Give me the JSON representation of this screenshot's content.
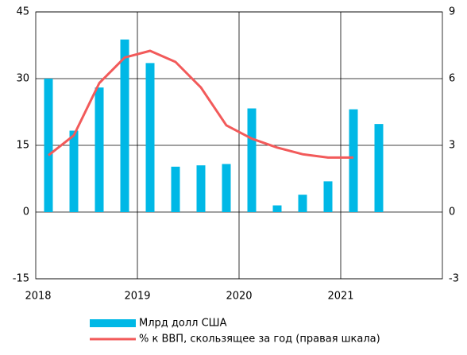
{
  "chart_data": {
    "type": "bar_line",
    "categories": [
      null,
      null,
      null,
      null,
      null,
      null,
      null,
      null,
      null,
      null,
      null,
      null,
      null,
      null,
      null,
      null
    ],
    "year_labels": [
      "2018",
      "2019",
      "2020",
      "2021"
    ],
    "series": [
      {
        "name": "Млрд долл США",
        "color": "#00b8e6",
        "type": "bar",
        "values": [
          30,
          18.3,
          28,
          38.8,
          33.5,
          10.2,
          10.5,
          10.8,
          23.3,
          1.5,
          3.9,
          6.9,
          23.1,
          19.8,
          null,
          null
        ]
      },
      {
        "name": "% к ВВП, скользящее за год (правая шкала)",
        "color": "#f25a5a",
        "type": "line",
        "axis": "y2",
        "values": [
          2.55,
          3.45,
          5.8,
          6.95,
          7.25,
          6.75,
          5.6,
          3.9,
          3.3,
          2.9,
          2.6,
          2.45,
          2.45,
          null,
          null,
          null
        ]
      }
    ],
    "ylim": [
      -15,
      45
    ],
    "yticks": [
      -15,
      0,
      15,
      30,
      45
    ],
    "y2lim": [
      -3,
      9
    ],
    "y2ticks": [
      -3,
      0,
      3,
      6,
      9
    ],
    "grid": true,
    "legend": "bottom"
  }
}
